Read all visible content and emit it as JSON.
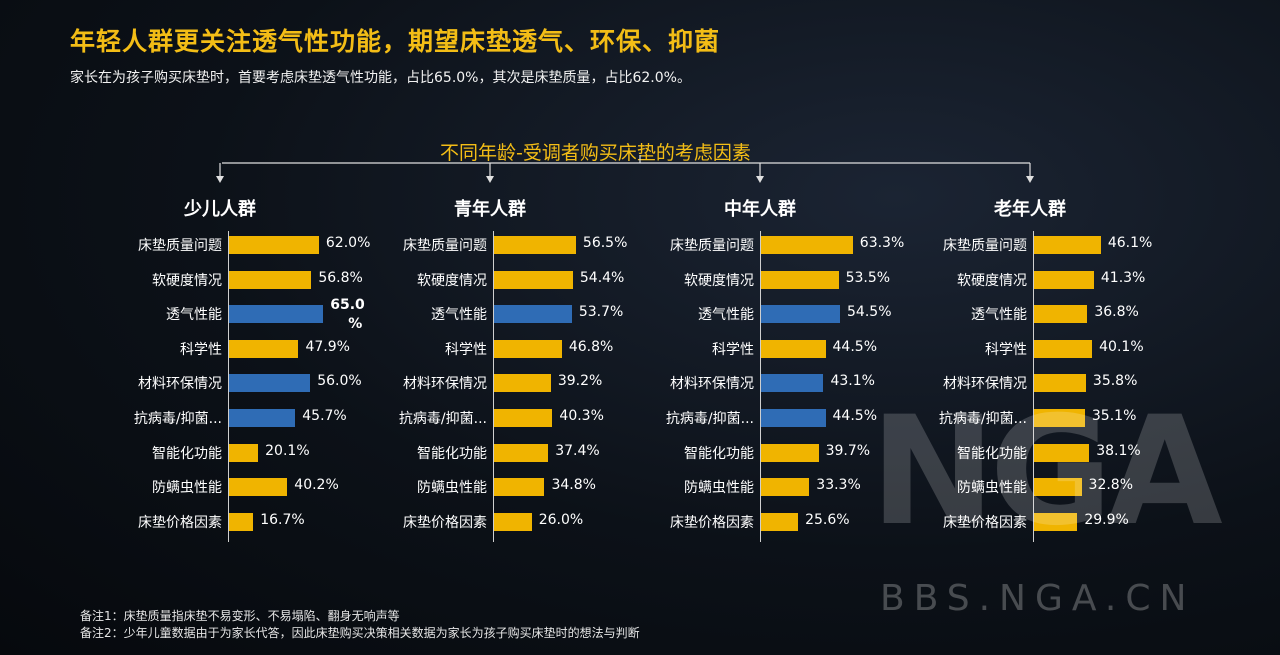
{
  "title": "年轻人群更关注透气性功能，期望床垫透气、环保、抑菌",
  "subtitle": "家长在为孩子购买床垫时，首要考虑床垫透气性功能，占比65.0%，其次是床垫质量，占比62.0%。",
  "chart_data": {
    "type": "bar",
    "orientation": "horizontal",
    "title": "不同年龄-受调者购买床垫的考虑因素",
    "categories": [
      "床垫质量问题",
      "软硬度情况",
      "透气性能",
      "科学性",
      "材料环保情况",
      "抗病毒/抑菌...",
      "智能化功能",
      "防螨虫性能",
      "床垫价格因素"
    ],
    "series": [
      {
        "name": "少儿人群",
        "values": [
          62.0,
          56.8,
          65.0,
          47.9,
          56.0,
          45.7,
          20.1,
          40.2,
          16.7
        ],
        "labels": [
          "62.0%",
          "56.8%",
          "65.0\n%",
          "47.9%",
          "56.0%",
          "45.7%",
          "20.1%",
          "40.2%",
          "16.7%"
        ],
        "highlight": [
          false,
          false,
          true,
          false,
          true,
          true,
          false,
          false,
          false
        ]
      },
      {
        "name": "青年人群",
        "values": [
          56.5,
          54.4,
          53.7,
          46.8,
          39.2,
          40.3,
          37.4,
          34.8,
          26.0
        ],
        "labels": [
          "56.5%",
          "54.4%",
          "53.7%",
          "46.8%",
          "39.2%",
          "40.3%",
          "37.4%",
          "34.8%",
          "26.0%"
        ],
        "highlight": [
          false,
          false,
          true,
          false,
          false,
          false,
          false,
          false,
          false
        ]
      },
      {
        "name": "中年人群",
        "values": [
          63.3,
          53.5,
          54.5,
          44.5,
          43.1,
          44.5,
          39.7,
          33.3,
          25.6
        ],
        "labels": [
          "63.3%",
          "53.5%",
          "54.5%",
          "44.5%",
          "43.1%",
          "44.5%",
          "39.7%",
          "33.3%",
          "25.6%"
        ],
        "highlight": [
          false,
          false,
          true,
          false,
          true,
          true,
          false,
          false,
          false
        ]
      },
      {
        "name": "老年人群",
        "values": [
          46.1,
          41.3,
          36.8,
          40.1,
          35.8,
          35.1,
          38.1,
          32.8,
          29.9
        ],
        "labels": [
          "46.1%",
          "41.3%",
          "36.8%",
          "40.1%",
          "35.8%",
          "35.1%",
          "38.1%",
          "32.8%",
          "29.9%"
        ],
        "highlight": [
          false,
          false,
          false,
          false,
          false,
          false,
          false,
          false,
          false
        ]
      }
    ],
    "colors": {
      "default": "#f0b400",
      "highlight": "#2f6cb5"
    }
  },
  "notes": [
    "备注1：床垫质量指床垫不易变形、不易塌陷、翻身无响声等",
    "备注2：少年儿童数据由于为家长代答，因此床垫购买决策相关数据为家长为孩子购买床垫时的想法与判断"
  ],
  "watermark": {
    "logo": "NGA",
    "url": "BBS.NGA.CN"
  }
}
